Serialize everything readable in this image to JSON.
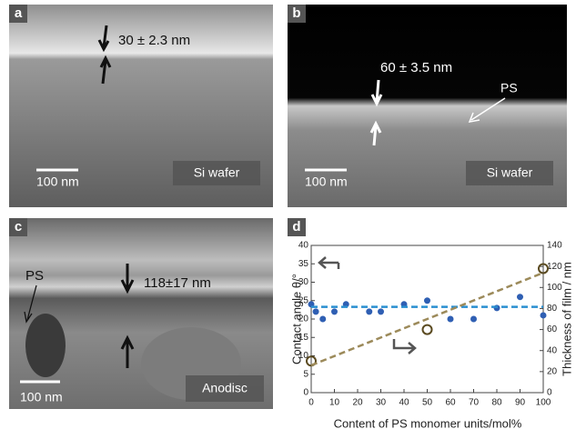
{
  "panels": [
    {
      "label": "a",
      "thickness": "30 ± 2.3 nm",
      "scale_bar": "100 nm",
      "substrate": "Si wafer"
    },
    {
      "label": "b",
      "thickness": "60 ± 3.5 nm",
      "layer": "PS",
      "scale_bar": "100 nm",
      "substrate": "Si wafer"
    },
    {
      "label": "c",
      "thickness": "118±17 nm",
      "layer": "PS",
      "scale_bar": "100 nm",
      "substrate": "Anodisc"
    }
  ],
  "chart_data": {
    "type": "scatter",
    "label": "d",
    "xlabel": "Content of PS monomer units/mol%",
    "ylabel": "Contact angle θ/°",
    "y2label": "Thickness of film / nm",
    "xlim": [
      0,
      100
    ],
    "xticks": [
      0,
      10,
      20,
      30,
      40,
      50,
      60,
      70,
      80,
      90,
      100
    ],
    "ylim": [
      0,
      40
    ],
    "yticks": [
      0,
      5,
      10,
      15,
      20,
      25,
      30,
      35,
      40
    ],
    "y2lim": [
      0,
      140
    ],
    "y2ticks": [
      0,
      20,
      40,
      60,
      80,
      100,
      120,
      140
    ],
    "series": [
      {
        "color": "#2f5fb3",
        "marker": "filled",
        "x": [
          0,
          2,
          5,
          10,
          15,
          25,
          30,
          40,
          50,
          60,
          70,
          80,
          90,
          100
        ],
        "values": [
          24,
          22,
          20,
          22,
          24,
          22,
          22,
          24,
          25,
          20,
          20,
          23,
          26,
          21
        ]
      },
      {
        "color": "#2a8fd0",
        "style": "dashed",
        "x": [
          0,
          100
        ],
        "values": [
          23.3,
          23.3
        ]
      },
      {
        "color": "#5a4a20",
        "marker": "open",
        "axis": "y2",
        "x": [
          0,
          50,
          100
        ],
        "values": [
          30,
          60,
          118
        ]
      },
      {
        "color": "#9c8a5a",
        "style": "dashed",
        "axis": "y2",
        "x": [
          0,
          100
        ],
        "values": [
          26,
          114
        ]
      }
    ]
  }
}
